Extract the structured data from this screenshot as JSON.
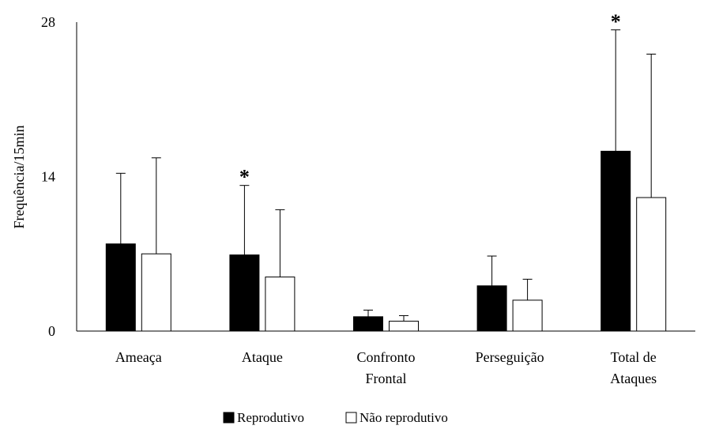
{
  "chart_data": {
    "type": "bar",
    "ylabel": "Frequência/15min",
    "ylim": [
      0,
      28
    ],
    "yticks": [
      0,
      14,
      28
    ],
    "categories": [
      "Ameaça",
      "Ataque",
      "Confronto Frontal",
      "Perseguição",
      "Total de Ataques"
    ],
    "category_lines": [
      [
        "Ameaça"
      ],
      [
        "Ataque"
      ],
      [
        "Confronto",
        "Frontal"
      ],
      [
        "Perseguição"
      ],
      [
        "Total de",
        "Ataques"
      ]
    ],
    "series": [
      {
        "name": "Reprodutivo",
        "color": "#000000",
        "values": [
          7.9,
          6.9,
          1.3,
          4.1,
          16.3
        ],
        "errors": [
          6.4,
          6.3,
          0.6,
          2.7,
          11.0
        ]
      },
      {
        "name": "Não reprodutivo",
        "color": "#ffffff",
        "values": [
          7.0,
          4.9,
          0.9,
          2.8,
          12.1
        ],
        "errors": [
          8.7,
          6.1,
          0.5,
          1.9,
          13.0
        ]
      }
    ],
    "significance": [
      {
        "category_index": 1,
        "label": "*"
      },
      {
        "category_index": 4,
        "label": "*"
      }
    ],
    "legend_position": "bottom",
    "grid": false
  }
}
